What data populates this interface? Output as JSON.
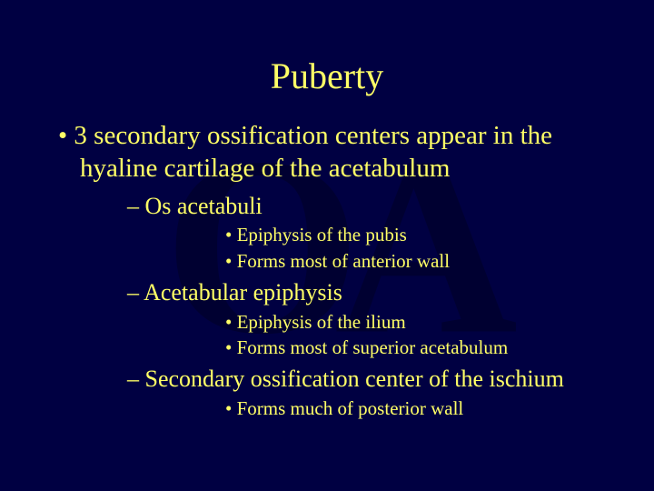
{
  "slide": {
    "title": "Puberty",
    "background_color": "#000042",
    "text_color": "#ffff66",
    "title_fontsize": 40,
    "watermark_text": "OA",
    "bullets": {
      "l1": {
        "text": "3 secondary ossification centers appear in the hyaline cartilage of the acetabulum",
        "fontsize": 29
      },
      "l2a": {
        "text": "Os acetabuli",
        "fontsize": 26
      },
      "l2a_3a": {
        "text": "Epiphysis of the pubis",
        "fontsize": 21
      },
      "l2a_3b": {
        "text": "Forms most of anterior wall",
        "fontsize": 21
      },
      "l2b": {
        "text": "Acetabular epiphysis",
        "fontsize": 26
      },
      "l2b_3a": {
        "text": "Epiphysis of the ilium",
        "fontsize": 21
      },
      "l2b_3b": {
        "text": "Forms most of superior acetabulum",
        "fontsize": 21
      },
      "l2c": {
        "text": "Secondary ossification center of the ischium",
        "fontsize": 26
      },
      "l2c_3a": {
        "text": "Forms much of posterior wall",
        "fontsize": 21
      }
    }
  }
}
